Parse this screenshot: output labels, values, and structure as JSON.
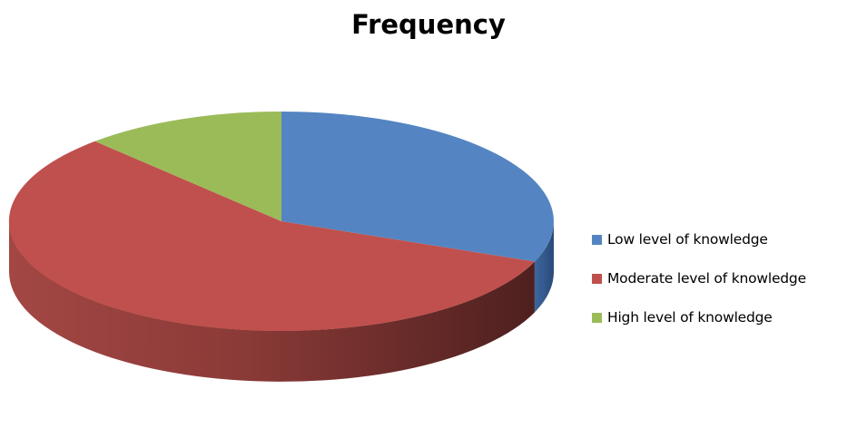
{
  "chart_data": {
    "type": "pie",
    "title": "Frequency",
    "labels": [
      "Low level of knowledge",
      "Moderate level of knowledge",
      "High level of knowledge"
    ],
    "values": [
      31,
      57,
      12
    ],
    "colors": [
      "#5485c2",
      "#c0504d",
      "#9bbb59"
    ],
    "style": "3d",
    "legend_position": "right"
  }
}
